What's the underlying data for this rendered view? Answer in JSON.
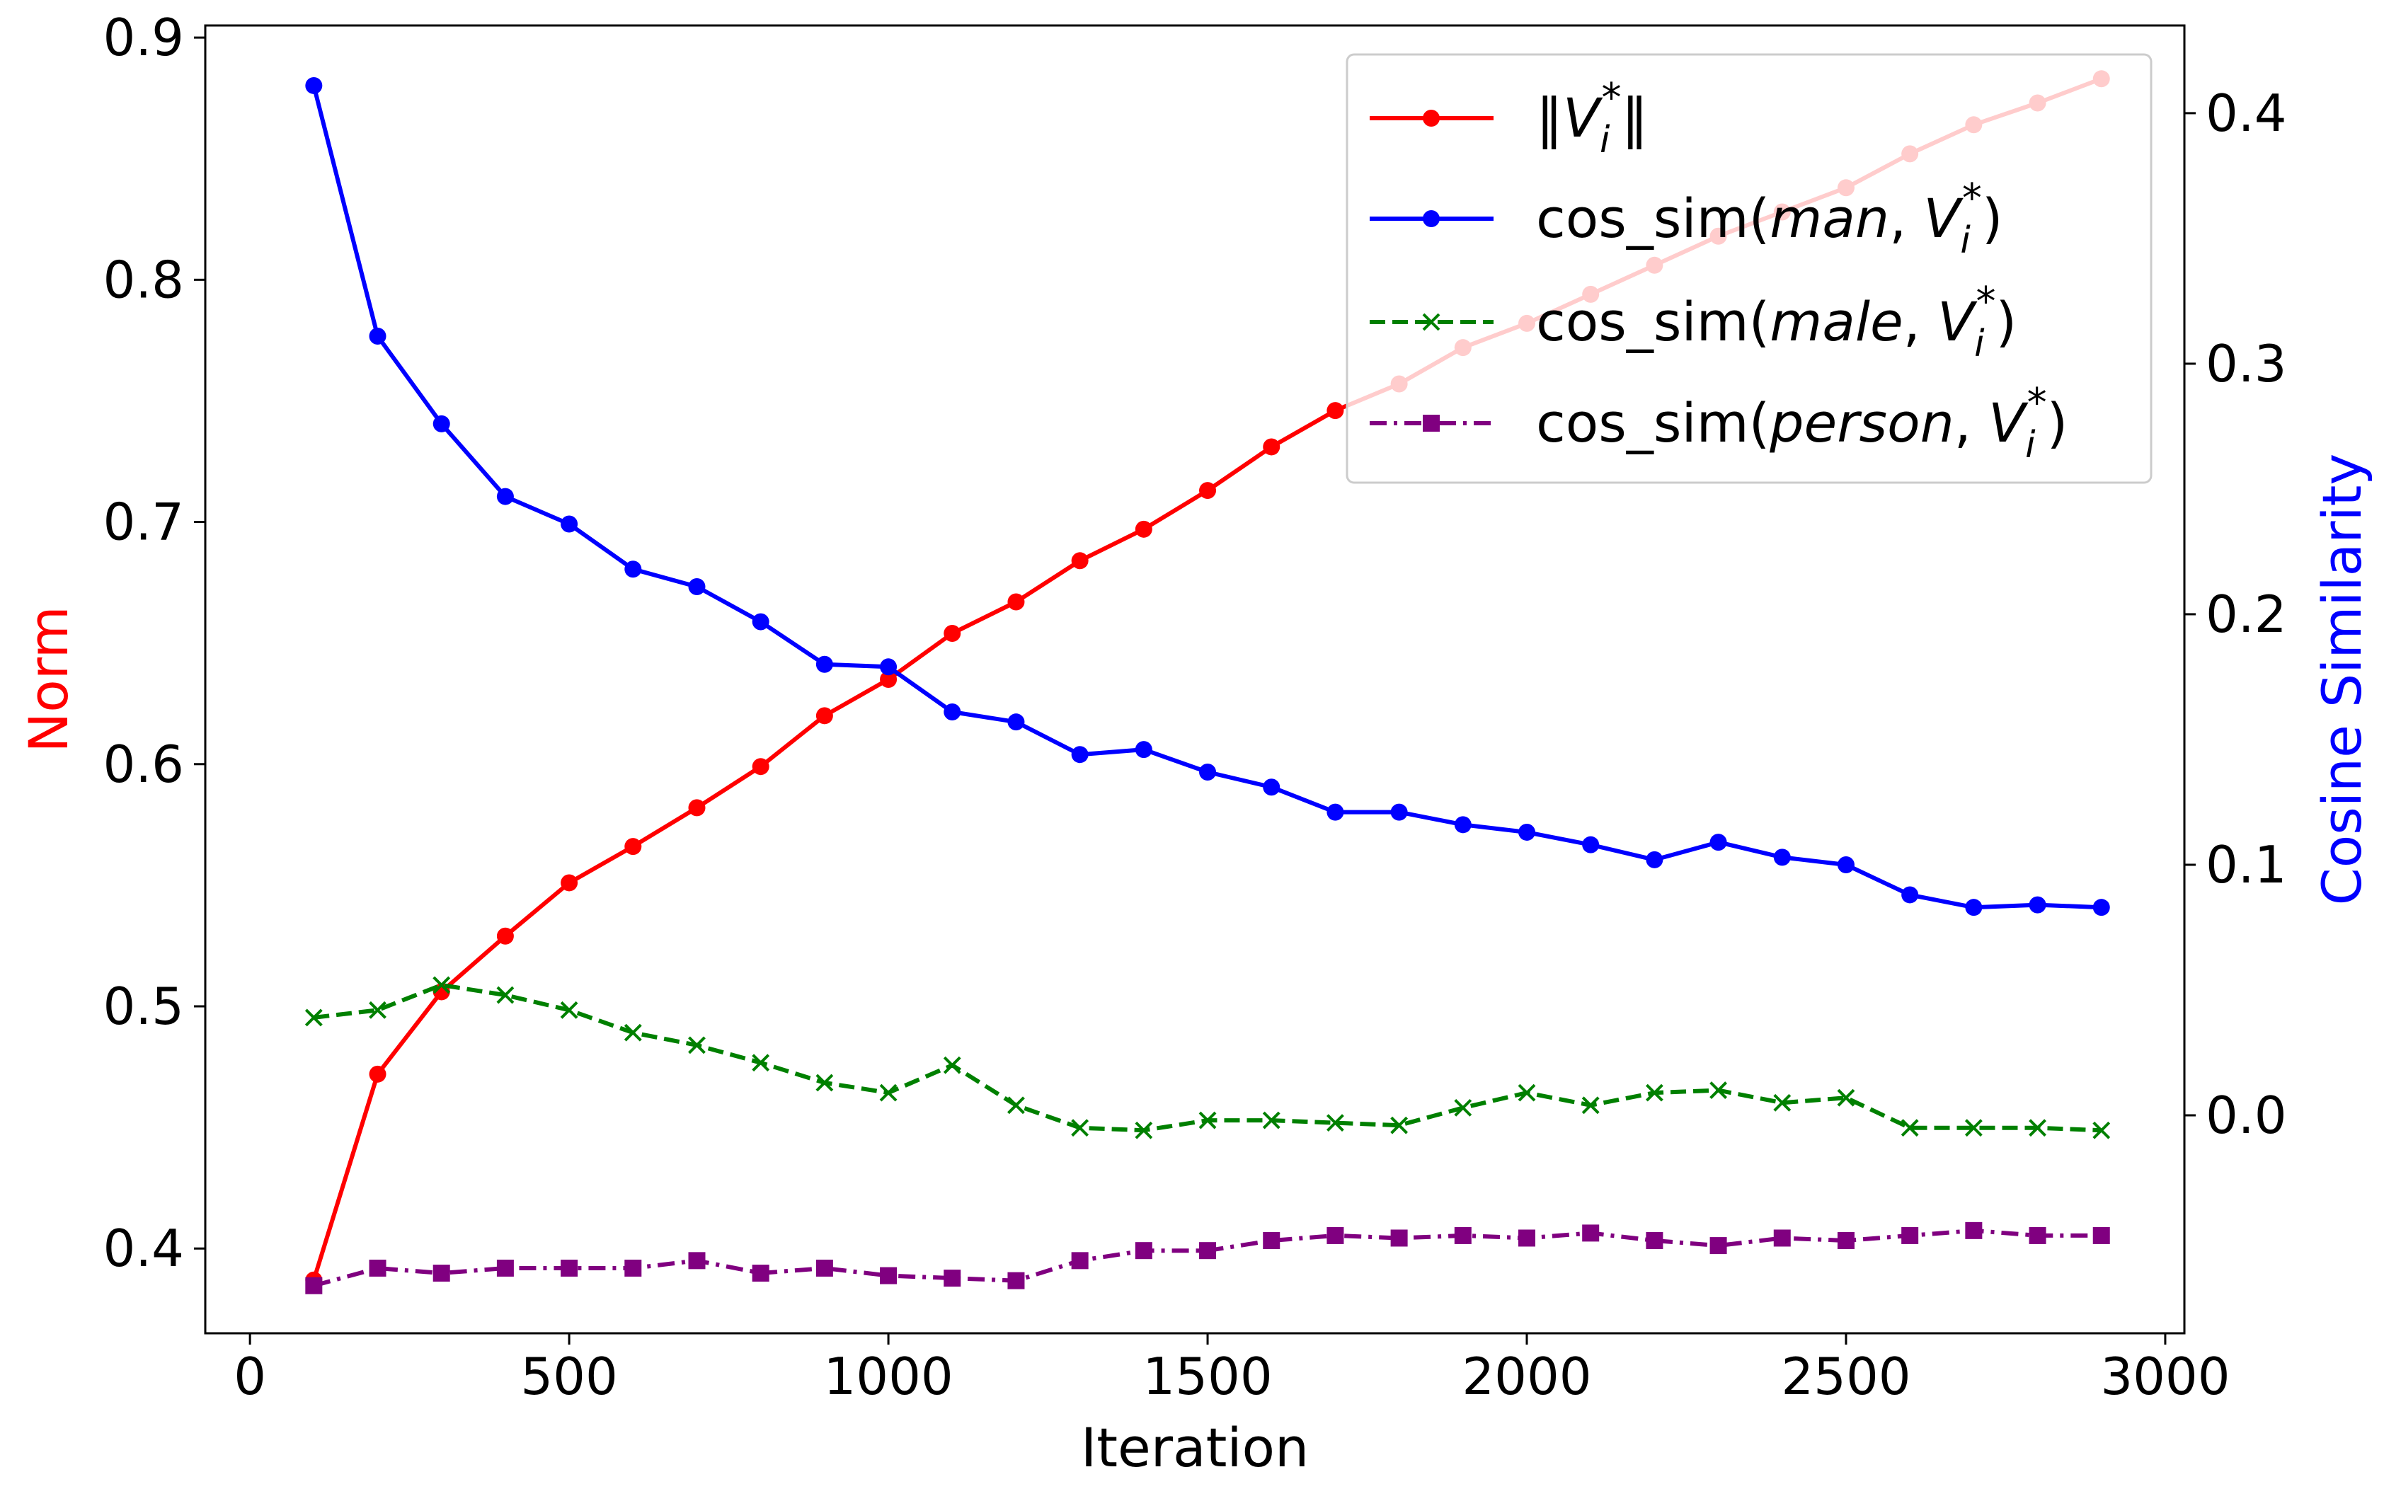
{
  "chart_data": {
    "type": "line",
    "xlabel": "Iteration",
    "ylabel_left": "Norm",
    "ylabel_right": "Cosine Similarity",
    "xlim": [
      -70,
      3030
    ],
    "ylim_left": [
      0.365,
      0.905
    ],
    "ylim_right": [
      -0.087,
      0.435
    ],
    "x_ticks": [
      0,
      500,
      1000,
      1500,
      2000,
      2500,
      3000
    ],
    "y_left_ticks": [
      0.4,
      0.5,
      0.6,
      0.7,
      0.8,
      0.9
    ],
    "y_right_ticks": [
      0.0,
      0.1,
      0.2,
      0.3,
      0.4
    ],
    "x_tick_labels": [
      "0",
      "500",
      "1000",
      "1500",
      "2000",
      "2500",
      "3000"
    ],
    "y_left_tick_labels": [
      "0.4",
      "0.5",
      "0.6",
      "0.7",
      "0.8",
      "0.9"
    ],
    "y_right_tick_labels": [
      "0.0",
      "0.1",
      "0.2",
      "0.3",
      "0.4"
    ],
    "x": [
      100,
      200,
      300,
      400,
      500,
      600,
      700,
      800,
      900,
      1000,
      1100,
      1200,
      1300,
      1400,
      1500,
      1600,
      1700,
      1800,
      1900,
      2000,
      2100,
      2200,
      2300,
      2400,
      2500,
      2600,
      2700,
      2800,
      2900
    ],
    "series": [
      {
        "name": "norm",
        "legend_parts": [
          "‖",
          "V",
          "i",
          "*",
          "‖"
        ],
        "axis": "left",
        "color": "#ff0000",
        "linestyle": "solid",
        "marker": "circle",
        "values": [
          0.387,
          0.472,
          0.506,
          0.529,
          0.551,
          0.566,
          0.582,
          0.599,
          0.62,
          0.635,
          0.654,
          0.667,
          0.684,
          0.697,
          0.713,
          0.731,
          0.746,
          0.757,
          0.772,
          0.782,
          0.794,
          0.806,
          0.818,
          0.828,
          0.838,
          0.852,
          0.864,
          0.873,
          0.883
        ]
      },
      {
        "name": "cos_sim(man, V_i*)",
        "legend_parts": [
          "cos_sim(",
          "man",
          ", ",
          "V",
          "i",
          "*",
          ")"
        ],
        "axis": "right",
        "color": "#0000ff",
        "linestyle": "solid",
        "marker": "circle",
        "values": [
          0.411,
          0.311,
          0.276,
          0.247,
          0.236,
          0.218,
          0.211,
          0.197,
          0.18,
          0.179,
          0.161,
          0.157,
          0.144,
          0.146,
          0.137,
          0.131,
          0.121,
          0.121,
          0.116,
          0.113,
          0.108,
          0.102,
          0.109,
          0.103,
          0.1,
          0.088,
          0.083,
          0.084,
          0.083
        ]
      },
      {
        "name": "cos_sim(male, V_i*)",
        "legend_parts": [
          "cos_sim(",
          "male",
          ", ",
          "V",
          "i",
          "*",
          ")"
        ],
        "axis": "right",
        "color": "#008000",
        "linestyle": "dashed",
        "marker": "x",
        "values": [
          0.039,
          0.042,
          0.052,
          0.048,
          0.042,
          0.033,
          0.028,
          0.021,
          0.013,
          0.009,
          0.02,
          0.004,
          -0.005,
          -0.006,
          -0.002,
          -0.002,
          -0.003,
          -0.004,
          0.003,
          0.009,
          0.004,
          0.009,
          0.01,
          0.005,
          0.007,
          -0.005,
          -0.005,
          -0.005,
          -0.006
        ]
      },
      {
        "name": "cos_sim(person, V_i*)",
        "legend_parts": [
          "cos_sim(",
          "person",
          ", ",
          "V",
          "i",
          "*",
          ")"
        ],
        "axis": "right",
        "color": "#800080",
        "linestyle": "dashdot",
        "marker": "square",
        "values": [
          -0.068,
          -0.061,
          -0.063,
          -0.061,
          -0.061,
          -0.061,
          -0.058,
          -0.063,
          -0.061,
          -0.064,
          -0.065,
          -0.066,
          -0.058,
          -0.054,
          -0.054,
          -0.05,
          -0.048,
          -0.049,
          -0.048,
          -0.049,
          -0.047,
          -0.05,
          -0.052,
          -0.049,
          -0.05,
          -0.048,
          -0.046,
          -0.048,
          -0.048
        ]
      }
    ],
    "legend_location": "top-right"
  },
  "colors": {
    "left_axis_label": "#ff0000",
    "right_axis_label": "#0000ff",
    "axes": "#000000"
  }
}
